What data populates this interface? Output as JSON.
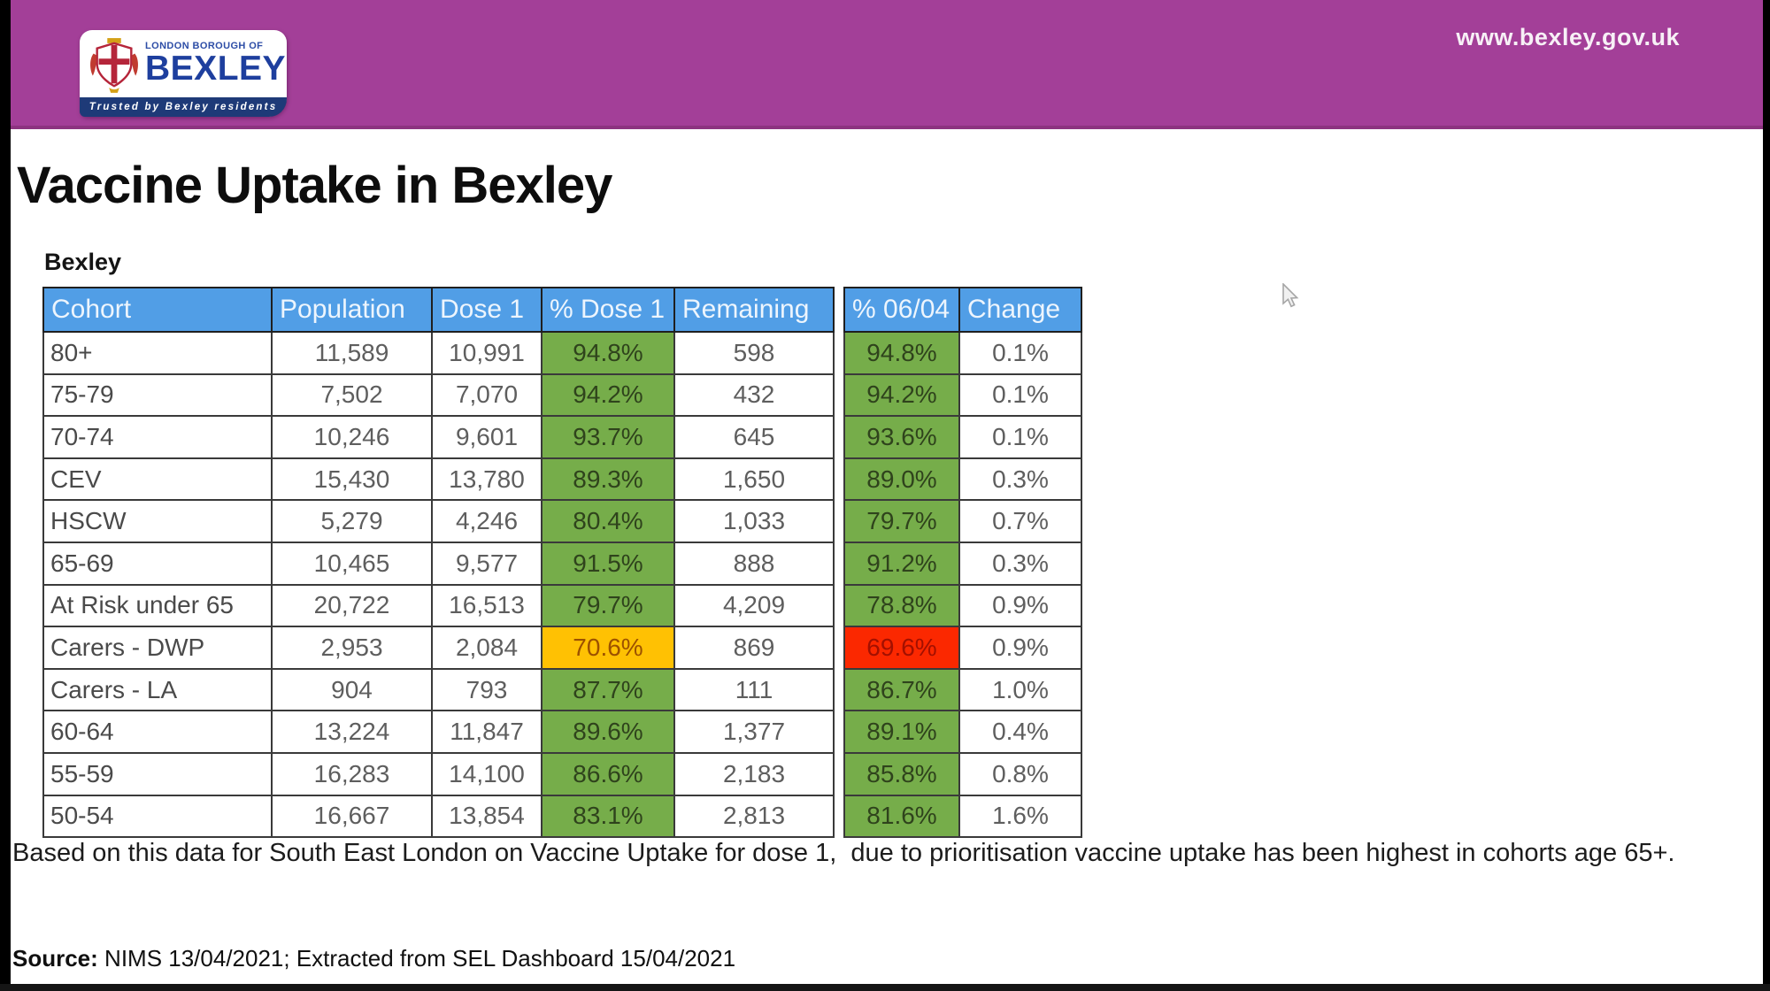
{
  "chrome": {
    "url_text": "www.bexley.gov.uk"
  },
  "logo": {
    "line1": "LONDON BOROUGH OF",
    "line2": "BEXLEY",
    "tagline": "Trusted by Bexley residents"
  },
  "page": {
    "title": "Vaccine Uptake in Bexley",
    "table_label": "Bexley",
    "note": "Based on this data for South East London on Vaccine Uptake for dose 1,  due to prioritisation vaccine uptake has been highest in cohorts age 65+.",
    "source_label": "Source:",
    "source_text": " NIMS 13/04/2021; Extracted from SEL Dashboard 15/04/2021"
  },
  "colors": {
    "header_band": "#a33f98",
    "table_header_blue": "#519ee6",
    "status_green": "#76ad4a",
    "status_amber": "#ffc103",
    "status_red": "#fb2800",
    "logo_navy": "#1e3a78",
    "logo_blue": "#1e3f9e"
  },
  "table": {
    "columns": [
      "Cohort",
      "Population",
      "Dose 1",
      "% Dose 1",
      "Remaining",
      "% 06/04",
      "Change"
    ],
    "rows": [
      {
        "cells": [
          "80+",
          "11,589",
          "10,991",
          "94.8%",
          "598",
          "94.8%",
          "0.1%"
        ],
        "dose1_status": "green",
        "pct0604_status": "green"
      },
      {
        "cells": [
          "75-79",
          "7,502",
          "7,070",
          "94.2%",
          "432",
          "94.2%",
          "0.1%"
        ],
        "dose1_status": "green",
        "pct0604_status": "green"
      },
      {
        "cells": [
          "70-74",
          "10,246",
          "9,601",
          "93.7%",
          "645",
          "93.6%",
          "0.1%"
        ],
        "dose1_status": "green",
        "pct0604_status": "green"
      },
      {
        "cells": [
          "CEV",
          "15,430",
          "13,780",
          "89.3%",
          "1,650",
          "89.0%",
          "0.3%"
        ],
        "dose1_status": "green",
        "pct0604_status": "green"
      },
      {
        "cells": [
          "HSCW",
          "5,279",
          "4,246",
          "80.4%",
          "1,033",
          "79.7%",
          "0.7%"
        ],
        "dose1_status": "green",
        "pct0604_status": "green"
      },
      {
        "cells": [
          "65-69",
          "10,465",
          "9,577",
          "91.5%",
          "888",
          "91.2%",
          "0.3%"
        ],
        "dose1_status": "green",
        "pct0604_status": "green"
      },
      {
        "cells": [
          "At Risk under 65",
          "20,722",
          "16,513",
          "79.7%",
          "4,209",
          "78.8%",
          "0.9%"
        ],
        "dose1_status": "green",
        "pct0604_status": "green"
      },
      {
        "cells": [
          "Carers - DWP",
          "2,953",
          "2,084",
          "70.6%",
          "869",
          "69.6%",
          "0.9%"
        ],
        "dose1_status": "amber",
        "pct0604_status": "red"
      },
      {
        "cells": [
          "Carers - LA",
          "904",
          "793",
          "87.7%",
          "111",
          "86.7%",
          "1.0%"
        ],
        "dose1_status": "green",
        "pct0604_status": "green"
      },
      {
        "cells": [
          "60-64",
          "13,224",
          "11,847",
          "89.6%",
          "1,377",
          "89.1%",
          "0.4%"
        ],
        "dose1_status": "green",
        "pct0604_status": "green"
      },
      {
        "cells": [
          "55-59",
          "16,283",
          "14,100",
          "86.6%",
          "2,183",
          "85.8%",
          "0.8%"
        ],
        "dose1_status": "green",
        "pct0604_status": "green"
      },
      {
        "cells": [
          "50-54",
          "16,667",
          "13,854",
          "83.1%",
          "2,813",
          "81.6%",
          "1.6%"
        ],
        "dose1_status": "green",
        "pct0604_status": "green"
      }
    ]
  }
}
